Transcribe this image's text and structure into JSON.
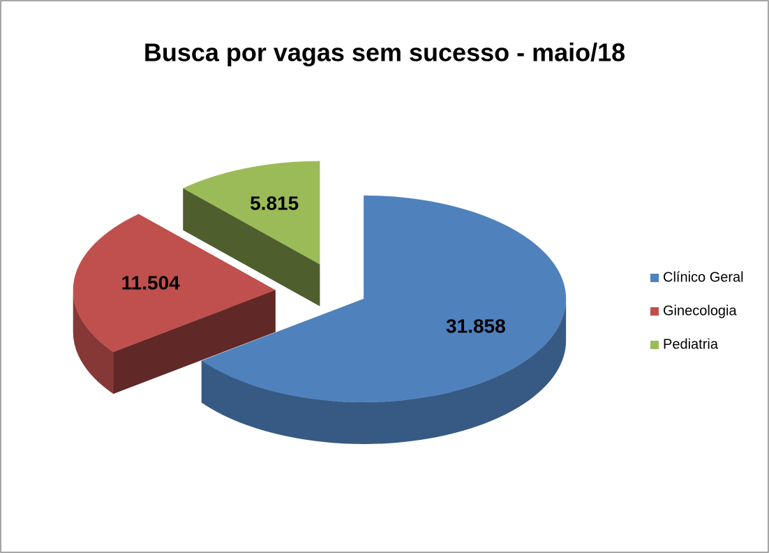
{
  "chart_data": {
    "type": "pie",
    "title": "Busca por vagas sem sucesso - maio/18",
    "categories": [
      "Clínico Geral",
      "Ginecologia",
      "Pediatria"
    ],
    "values": [
      31858,
      11504,
      5815
    ],
    "value_labels": [
      "31.858",
      "11.504",
      "5.815"
    ],
    "colors": [
      "#4f81bd",
      "#c0504d",
      "#9bbb59"
    ],
    "legend": "right"
  }
}
